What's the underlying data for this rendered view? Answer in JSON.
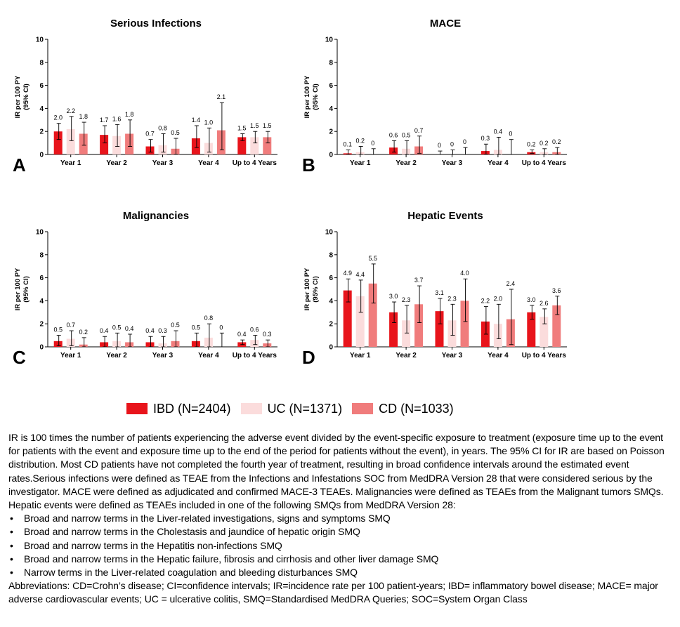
{
  "chart_data": [
    {
      "type": "bar",
      "title": "Serious Infections",
      "panel_letter": "A",
      "ylabel_lines": [
        "IR per 100 PY",
        "(95% CI)"
      ],
      "ylim": [
        0,
        10
      ],
      "yticks": [
        "0",
        "2",
        "4",
        "6",
        "8",
        "10"
      ],
      "categories": [
        "Year 1",
        "Year 2",
        "Year 3",
        "Year 4",
        "Up to 4 Years"
      ],
      "series": [
        {
          "name": "IBD (N=2404)",
          "color": "#e8141b",
          "values": [
            2.0,
            1.7,
            0.7,
            1.4,
            1.5
          ],
          "labels": [
            "2.0",
            "1.7",
            "0.7",
            "1.4",
            "1.5"
          ],
          "ci_low": [
            1.3,
            1.0,
            0.2,
            0.6,
            1.2
          ],
          "ci_high": [
            2.7,
            2.5,
            1.3,
            2.5,
            1.8
          ]
        },
        {
          "name": "UC (N=1371)",
          "color": "#fbdcdc",
          "values": [
            2.2,
            1.6,
            0.8,
            1.0,
            1.5
          ],
          "labels": [
            "2.2",
            "1.6",
            "0.8",
            "1.0",
            "1.5"
          ],
          "ci_low": [
            1.2,
            0.7,
            0.2,
            0.2,
            1.0
          ],
          "ci_high": [
            3.3,
            2.6,
            1.8,
            2.3,
            2.0
          ]
        },
        {
          "name": "CD (N=1033)",
          "color": "#f07c7c",
          "values": [
            1.8,
            1.8,
            0.5,
            2.1,
            1.5
          ],
          "labels": [
            "1.8",
            "1.8",
            "0.5",
            "2.1",
            "1.5"
          ],
          "ci_low": [
            0.8,
            0.7,
            0.0,
            0.4,
            1.0
          ],
          "ci_high": [
            2.8,
            3.0,
            1.4,
            4.5,
            2.0
          ]
        }
      ]
    },
    {
      "type": "bar",
      "title": "MACE",
      "panel_letter": "B",
      "ylabel_lines": [
        "IR per 100 PY",
        "(95% CI)"
      ],
      "ylim": [
        0,
        10
      ],
      "yticks": [
        "0",
        "2",
        "4",
        "6",
        "8",
        "10"
      ],
      "categories": [
        "Year 1",
        "Year 2",
        "Year 3",
        "Year 4",
        "Up to 4 Years"
      ],
      "series": [
        {
          "name": "IBD (N=2404)",
          "color": "#e8141b",
          "values": [
            0.1,
            0.6,
            0.0,
            0.3,
            0.2
          ],
          "labels": [
            "0.1",
            "0.6",
            "0",
            "0.3",
            "0.2"
          ],
          "ci_low": [
            0.0,
            0.2,
            0.0,
            0.0,
            0.1
          ],
          "ci_high": [
            0.4,
            1.2,
            0.3,
            0.9,
            0.4
          ]
        },
        {
          "name": "UC (N=1371)",
          "color": "#fbdcdc",
          "values": [
            0.2,
            0.5,
            0.0,
            0.4,
            0.2
          ],
          "labels": [
            "0.2",
            "0.5",
            "0",
            "0.4",
            "0.2"
          ],
          "ci_low": [
            0.0,
            0.0,
            0.0,
            0.0,
            0.0
          ],
          "ci_high": [
            0.7,
            1.2,
            0.4,
            1.5,
            0.5
          ]
        },
        {
          "name": "CD (N=1033)",
          "color": "#f07c7c",
          "values": [
            0.0,
            0.7,
            0.0,
            0.0,
            0.2
          ],
          "labels": [
            "0",
            "0.7",
            "0",
            "0",
            "0.2"
          ],
          "ci_low": [
            0.0,
            0.1,
            0.0,
            0.0,
            0.0
          ],
          "ci_high": [
            0.5,
            1.6,
            0.6,
            1.3,
            0.6
          ]
        }
      ]
    },
    {
      "type": "bar",
      "title": "Malignancies",
      "panel_letter": "C",
      "ylabel_lines": [
        "IR per 100 PY",
        "(95% CI)"
      ],
      "ylim": [
        0,
        10
      ],
      "yticks": [
        "0",
        "2",
        "4",
        "6",
        "8",
        "10"
      ],
      "categories": [
        "Year 1",
        "Year 2",
        "Year 3",
        "Year 4",
        "Up to 4 Years"
      ],
      "series": [
        {
          "name": "IBD (N=2404)",
          "color": "#e8141b",
          "values": [
            0.5,
            0.4,
            0.4,
            0.5,
            0.4
          ],
          "labels": [
            "0.5",
            "0.4",
            "0.4",
            "0.5",
            "0.4"
          ],
          "ci_low": [
            0.1,
            0.0,
            0.0,
            0.0,
            0.2
          ],
          "ci_high": [
            1.0,
            0.9,
            0.9,
            1.2,
            0.6
          ]
        },
        {
          "name": "UC (N=1371)",
          "color": "#fbdcdc",
          "values": [
            0.7,
            0.5,
            0.3,
            0.8,
            0.6
          ],
          "labels": [
            "0.7",
            "0.5",
            "0.3",
            "0.8",
            "0.6"
          ],
          "ci_low": [
            0.1,
            0.0,
            0.0,
            0.0,
            0.2
          ],
          "ci_high": [
            1.4,
            1.2,
            0.9,
            2.0,
            1.0
          ]
        },
        {
          "name": "CD (N=1033)",
          "color": "#f07c7c",
          "values": [
            0.2,
            0.4,
            0.5,
            0.0,
            0.3
          ],
          "labels": [
            "0.2",
            "0.4",
            "0.5",
            "0",
            "0.3"
          ],
          "ci_low": [
            0.0,
            0.0,
            0.0,
            0.0,
            0.0
          ],
          "ci_high": [
            0.8,
            1.1,
            1.4,
            1.2,
            0.6
          ]
        }
      ]
    },
    {
      "type": "bar",
      "title": "Hepatic Events",
      "panel_letter": "D",
      "ylabel_lines": [
        "IR per 100 PY",
        "(95% CI)"
      ],
      "ylim": [
        0,
        10
      ],
      "yticks": [
        "0",
        "2",
        "4",
        "6",
        "8",
        "10"
      ],
      "categories": [
        "Year 1",
        "Year 2",
        "Year 3",
        "Year 4",
        "Up to 4 Years"
      ],
      "series": [
        {
          "name": "IBD (N=2404)",
          "color": "#e8141b",
          "values": [
            4.9,
            3.0,
            3.1,
            2.2,
            3.0
          ],
          "labels": [
            "4.9",
            "3.0",
            "3.1",
            "2.2",
            "3.0"
          ],
          "ci_low": [
            3.9,
            2.1,
            2.0,
            1.1,
            2.4
          ],
          "ci_high": [
            5.9,
            3.9,
            4.2,
            3.5,
            3.6
          ]
        },
        {
          "name": "UC (N=1371)",
          "color": "#fbdcdc",
          "values": [
            4.4,
            2.3,
            2.3,
            2.0,
            2.6
          ],
          "labels": [
            "4.4",
            "2.3",
            "2.3",
            "2.0",
            "2.6"
          ],
          "ci_low": [
            3.0,
            1.2,
            1.0,
            0.7,
            2.0
          ],
          "ci_high": [
            5.8,
            3.6,
            3.7,
            3.7,
            3.3
          ]
        },
        {
          "name": "CD (N=1033)",
          "color": "#f07c7c",
          "values": [
            5.5,
            3.7,
            4.0,
            2.4,
            3.6
          ],
          "labels": [
            "5.5",
            "3.7",
            "4.0",
            "2.4",
            "3.6"
          ],
          "ci_low": [
            3.8,
            2.1,
            2.2,
            0.2,
            2.8
          ],
          "ci_high": [
            7.2,
            5.3,
            5.9,
            5.0,
            4.4
          ]
        }
      ]
    }
  ],
  "legend": [
    {
      "label": "IBD (N=2404)",
      "color": "#e8141b"
    },
    {
      "label": "UC (N=1371)",
      "color": "#fbdcdc"
    },
    {
      "label": "CD (N=1033)",
      "color": "#f07c7c"
    }
  ],
  "notes": {
    "paragraph": "IR is 100 times the number of patients experiencing the adverse event divided by the event-specific exposure to treatment (exposure time up to the event for patients with the event and exposure time up to the end of the period for patients without the event), in years. The 95% CI for IR are based on Poisson distribution.  Most CD patients have not completed the fourth year of treatment, resulting in broad confidence intervals around the estimated event rates.Serious infections were defined as TEAE from the Infections and Infestations SOC from MedDRA Version 28 that were considered serious by the investigator. MACE were defined as adjudicated and confirmed MACE-3 TEAEs. Malignancies were defined as TEAEs from the  Malignant tumors SMQs. Hepatic events were defined as TEAEs included in one of the following SMQs from MedDRA Version 28:",
    "bullets": [
      "Broad and narrow terms in the Liver-related investigations, signs and symptoms SMQ",
      "Broad and narrow terms in the Cholestasis and jaundice of hepatic origin SMQ",
      "Broad and narrow terms in the Hepatitis non-infections SMQ",
      "Broad and narrow terms in the Hepatic failure, fibrosis and cirrhosis and other liver damage SMQ",
      "Narrow terms in the Liver-related coagulation and bleeding disturbances SMQ"
    ],
    "abbreviations": "Abbreviations: CD=Crohn’s disease; CI=confidence intervals; IR=incidence rate per 100 patient-years; IBD= inflammatory bowel disease; MACE= major adverse cardiovascular events; UC = ulcerative colitis, SMQ=Standardised MedDRA Queries; SOC=System Organ Class"
  }
}
